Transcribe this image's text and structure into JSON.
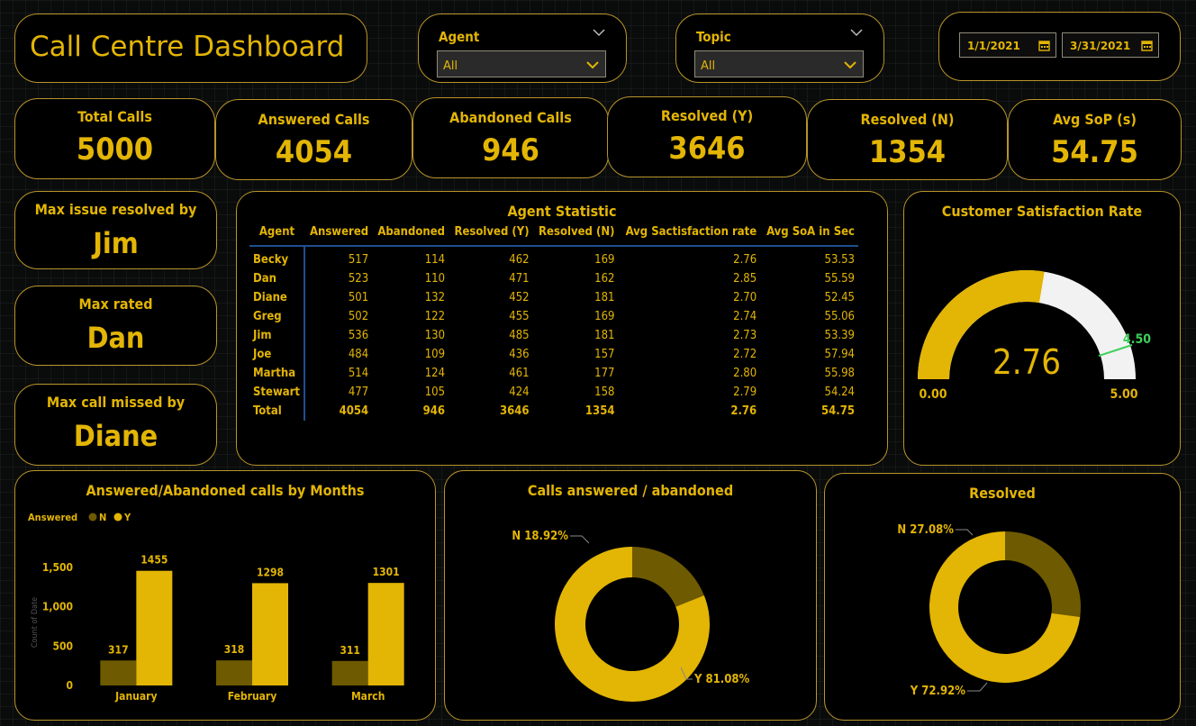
{
  "header": {
    "title": "Call Centre Dashboard"
  },
  "filters": {
    "agent": {
      "label": "Agent",
      "selected": "All"
    },
    "topic": {
      "label": "Topic",
      "selected": "All"
    },
    "date_start": "1/1/2021",
    "date_end": "3/31/2021"
  },
  "kpis": [
    {
      "label": "Total Calls",
      "value": "5000"
    },
    {
      "label": "Answered Calls",
      "value": "4054"
    },
    {
      "label": "Abandoned Calls",
      "value": "946"
    },
    {
      "label": "Resolved (Y)",
      "value": "3646"
    },
    {
      "label": "Resolved (N)",
      "value": "1354"
    },
    {
      "label": "Avg SoP (s)",
      "value": "54.75"
    }
  ],
  "cards": {
    "max_resolved": {
      "label": "Max issue resolved by",
      "value": "Jim"
    },
    "max_rated": {
      "label": "Max rated",
      "value": "Dan"
    },
    "max_missed": {
      "label": "Max call missed by",
      "value": "Diane"
    }
  },
  "agent_table": {
    "title": "Agent Statistic",
    "columns": [
      "Agent",
      "Answered",
      "Abandoned",
      "Resolved (Y)",
      "Resolved (N)",
      "Avg Sactisfaction rate",
      "Avg SoA in Sec"
    ],
    "rows": [
      [
        "Becky",
        "517",
        "114",
        "462",
        "169",
        "2.76",
        "53.53"
      ],
      [
        "Dan",
        "523",
        "110",
        "471",
        "162",
        "2.85",
        "55.59"
      ],
      [
        "Diane",
        "501",
        "132",
        "452",
        "181",
        "2.70",
        "52.45"
      ],
      [
        "Greg",
        "502",
        "122",
        "455",
        "169",
        "2.74",
        "55.06"
      ],
      [
        "Jim",
        "536",
        "130",
        "485",
        "181",
        "2.73",
        "53.39"
      ],
      [
        "Joe",
        "484",
        "109",
        "436",
        "157",
        "2.72",
        "57.94"
      ],
      [
        "Martha",
        "514",
        "124",
        "461",
        "177",
        "2.80",
        "55.98"
      ],
      [
        "Stewart",
        "477",
        "105",
        "424",
        "158",
        "2.79",
        "54.24"
      ]
    ],
    "total": [
      "Total",
      "4054",
      "946",
      "3646",
      "1354",
      "2.76",
      "54.75"
    ]
  },
  "colors": {
    "accent": "#e3b505",
    "dark_gold": "#6e5a00",
    "gauge_bg": "#f2f2f2",
    "target": "#3ecf5a",
    "border": "#b8952a"
  },
  "chart_data": [
    {
      "type": "bar",
      "title": "Answered/Abandoned calls by Months",
      "legend_title": "Answered",
      "legend_placement": "top-left",
      "ylabel": "Count of Date",
      "ylim": [
        0,
        1600
      ],
      "yticks": [
        "0",
        "500",
        "1,000",
        "1,500"
      ],
      "yticks_values": [
        0,
        500,
        1000,
        1500
      ],
      "categories": [
        "January",
        "February",
        "March"
      ],
      "series": [
        {
          "name": "N",
          "values": [
            317,
            318,
            311
          ],
          "color": "#6e5a00"
        },
        {
          "name": "Y",
          "values": [
            1455,
            1298,
            1301
          ],
          "color": "#e3b505"
        }
      ]
    },
    {
      "type": "pie",
      "title": "Calls answered / abandoned",
      "slices": [
        {
          "label": "N 18.92%",
          "value": 18.92,
          "color": "#6e5a00"
        },
        {
          "label": "Y 81.08%",
          "value": 81.08,
          "color": "#e3b505"
        }
      ]
    },
    {
      "type": "pie",
      "title": "Resolved",
      "slices": [
        {
          "label": "N 27.08%",
          "value": 27.08,
          "color": "#6e5a00"
        },
        {
          "label": "Y 72.92%",
          "value": 72.92,
          "color": "#e3b505"
        }
      ]
    },
    {
      "type": "gauge",
      "title": "Customer Satisfaction Rate",
      "value": 2.76,
      "value_label": "2.76",
      "min": 0,
      "max": 5,
      "min_label": "0.00",
      "max_label": "5.00",
      "target": 4.5,
      "target_label": "4.50"
    }
  ]
}
